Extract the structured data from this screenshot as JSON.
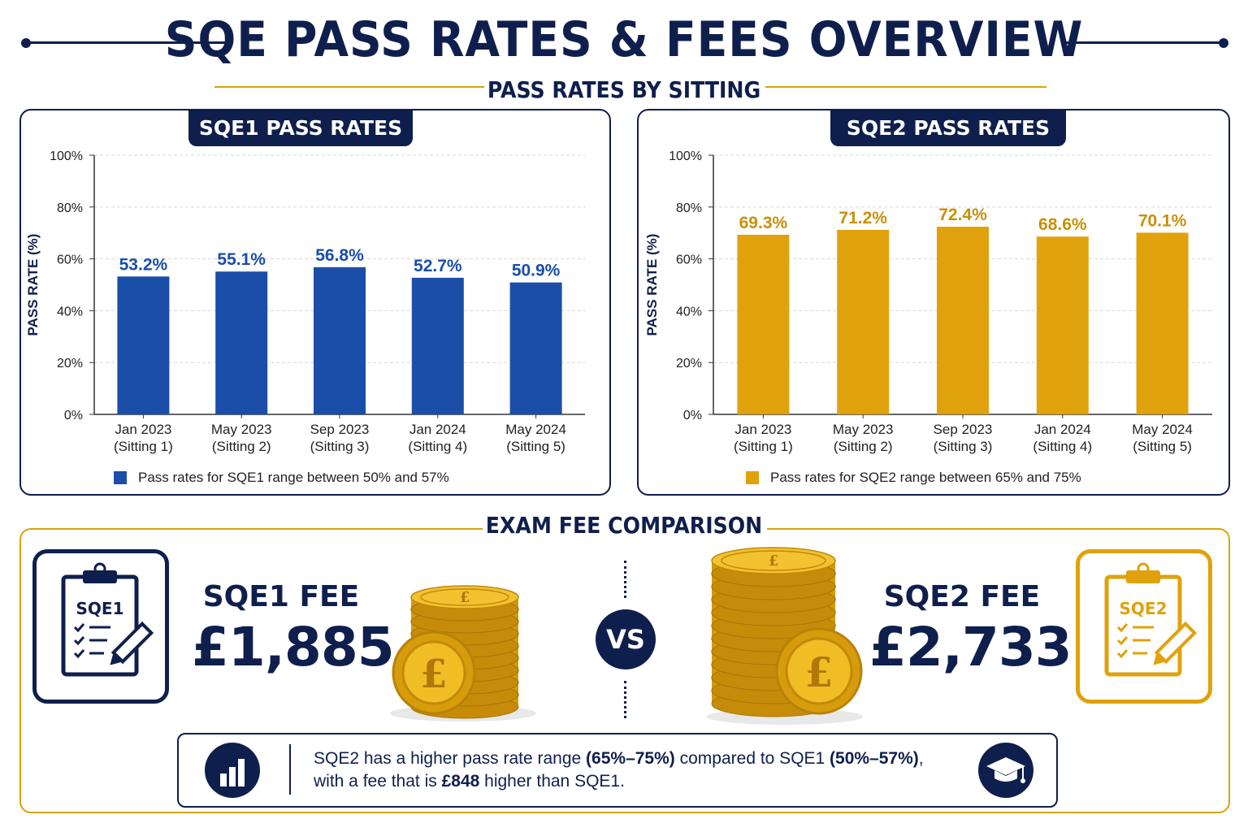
{
  "title": "SQE PASS RATES & FEES OVERVIEW",
  "pass_rates_heading": "PASS RATES BY SITTING",
  "fee_heading": "EXAM FEE COMPARISON",
  "colors": {
    "navy": "#0f1f4d",
    "sqe1_blue": "#1a4ea8",
    "sqe2_gold": "#e0a20c",
    "gold_accent": "#d9a20b"
  },
  "chart_data": [
    {
      "type": "bar",
      "title": "SQE1 PASS RATES",
      "ylabel": "PASS RATE (%)",
      "categories": [
        [
          "Jan 2023",
          "(Sitting 1)"
        ],
        [
          "May 2023",
          "(Sitting 2)"
        ],
        [
          "Sep 2023",
          "(Sitting 3)"
        ],
        [
          "Jan 2024",
          "(Sitting 4)"
        ],
        [
          "May 2024",
          "(Sitting 5)"
        ]
      ],
      "values": [
        53.2,
        55.1,
        56.8,
        52.7,
        50.9
      ],
      "value_labels": [
        "53.2%",
        "55.1%",
        "56.8%",
        "52.7%",
        "50.9%"
      ],
      "yticks": [
        "0%",
        "20%",
        "40%",
        "60%",
        "80%",
        "100%"
      ],
      "ylim": [
        0,
        100
      ],
      "grid": true,
      "color": "#1a4ea8",
      "legend": "Pass rates for SQE1 range between 50% and 57%"
    },
    {
      "type": "bar",
      "title": "SQE2 PASS RATES",
      "ylabel": "PASS RATE (%)",
      "categories": [
        [
          "Jan 2023",
          "(Sitting 1)"
        ],
        [
          "May 2023",
          "(Sitting 2)"
        ],
        [
          "Sep 2023",
          "(Sitting 3)"
        ],
        [
          "Jan 2024",
          "(Sitting 4)"
        ],
        [
          "May 2024",
          "(Sitting 5)"
        ]
      ],
      "values": [
        69.3,
        71.2,
        72.4,
        68.6,
        70.1
      ],
      "value_labels": [
        "69.3%",
        "71.2%",
        "72.4%",
        "68.6%",
        "70.1%"
      ],
      "yticks": [
        "0%",
        "20%",
        "40%",
        "60%",
        "80%",
        "100%"
      ],
      "ylim": [
        0,
        100
      ],
      "grid": true,
      "color": "#e0a20c",
      "legend": "Pass rates for SQE2 range between 65% and 75%"
    }
  ],
  "fees": {
    "sqe1": {
      "badge": "SQE1",
      "label": "SQE1 FEE",
      "value": "£1,885"
    },
    "vs": "VS",
    "sqe2": {
      "badge": "SQE2",
      "label": "SQE2 FEE",
      "value": "£2,733"
    }
  },
  "summary": {
    "line1_a": "SQE2 has a higher pass rate range ",
    "line1_b": "(65%–75%)",
    "line1_c": " compared to SQE1 ",
    "line1_d": "(50%–57%)",
    "line1_e": ",",
    "line2_a": "with a fee that is ",
    "line2_b": "£848",
    "line2_c": " higher than SQE1.",
    "icon_left": "bar-chart-icon",
    "icon_right": "graduation-cap-icon"
  },
  "coin_symbol": "£"
}
